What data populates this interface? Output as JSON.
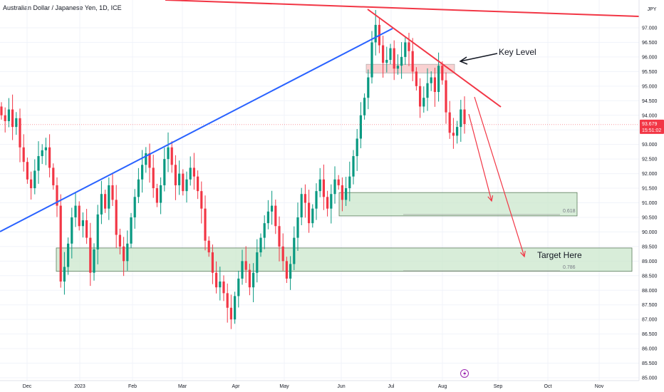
{
  "header": {
    "symbol_title": "Australian Dollar / Japanese Yen, 1D, ICE",
    "currency_label": "JPY"
  },
  "price_badge": {
    "price": "93.679",
    "countdown": "15:51:02",
    "color": "#f23645"
  },
  "annotations": {
    "key_level": "Key Level",
    "target": "Target Here",
    "fib_upper": "0.618",
    "fib_lower": "0.786",
    "lightning_icon": "lightning-icon"
  },
  "colors": {
    "up": "#089981",
    "down": "#f23645",
    "trend_blue": "#2962ff",
    "trend_red": "#f23645",
    "zone_green": "#c8e6c9",
    "zone_red": "#f8c6c6"
  },
  "chart_data": {
    "type": "candlestick",
    "y_axis": {
      "range": [
        84.8,
        97.4
      ],
      "ticks": [
        "85.000",
        "85.500",
        "86.000",
        "86.500",
        "87.000",
        "87.500",
        "88.000",
        "88.500",
        "89.000",
        "89.500",
        "90.000",
        "90.500",
        "91.000",
        "91.500",
        "92.000",
        "92.500",
        "93.000",
        "93.500",
        "94.000",
        "94.500",
        "95.000",
        "95.500",
        "96.000",
        "96.500",
        "97.000"
      ]
    },
    "x_axis": {
      "ticks": [
        "Dec",
        "2023",
        "Feb",
        "Mar",
        "Apr",
        "May",
        "Jun",
        "Jul",
        "Aug",
        "Sep",
        "Oct",
        "Nov"
      ]
    },
    "last_price": 93.679,
    "closes": [
      94.0,
      93.8,
      94.2,
      93.6,
      93.9,
      92.9,
      92.4,
      91.8,
      91.5,
      92.1,
      92.6,
      92.8,
      92.9,
      92.2,
      91.6,
      90.9,
      88.3,
      88.8,
      89.6,
      90.5,
      90.9,
      90.2,
      90.4,
      89.8,
      88.6,
      89.4,
      90.6,
      91.3,
      90.8,
      91.6,
      91.1,
      89.9,
      89.5,
      89.0,
      89.6,
      90.5,
      91.2,
      91.8,
      92.3,
      92.7,
      92.2,
      91.5,
      91.0,
      91.6,
      92.5,
      92.9,
      92.3,
      91.6,
      92.0,
      91.4,
      91.8,
      92.2,
      91.9,
      91.4,
      90.8,
      89.7,
      89.3,
      88.6,
      88.1,
      88.3,
      87.9,
      87.4,
      87.0,
      87.8,
      88.4,
      89.0,
      88.7,
      88.1,
      88.6,
      89.3,
      89.8,
      90.3,
      90.7,
      90.9,
      90.2,
      89.5,
      89.0,
      88.4,
      88.9,
      89.8,
      90.5,
      91.3,
      91.0,
      90.3,
      90.8,
      91.4,
      91.8,
      91.2,
      90.8,
      91.3,
      91.8,
      91.6,
      91.1,
      91.5,
      91.9,
      92.6,
      93.2,
      94.0,
      94.6,
      95.3,
      96.5,
      97.1,
      96.4,
      95.8,
      95.9,
      96.3,
      95.6,
      95.7,
      96.0,
      96.5,
      96.2,
      95.5,
      95.0,
      94.3,
      94.6,
      95.1,
      95.3,
      94.8,
      95.7,
      95.2,
      94.1,
      93.4,
      93.3,
      93.6,
      94.2,
      93.7
    ],
    "levels": [
      {
        "name": "Key Level zone",
        "from": 95.45,
        "to": 95.75
      },
      {
        "name": "0.618 zone",
        "from": 90.55,
        "to": 91.35,
        "fib": 0.618
      },
      {
        "name": "0.786 zone",
        "from": 88.65,
        "to": 89.45,
        "fib": 0.786
      }
    ]
  }
}
